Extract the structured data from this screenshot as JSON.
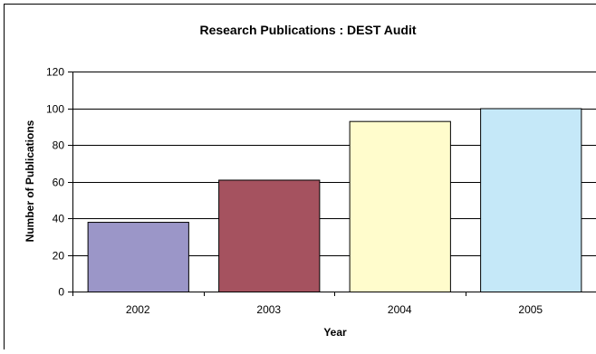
{
  "chart_data": {
    "type": "bar",
    "title": "Research Publications : DEST Audit",
    "xlabel": "Year",
    "ylabel": "Number of Publications",
    "categories": [
      "2002",
      "2003",
      "2004",
      "2005"
    ],
    "values": [
      38,
      61,
      93,
      100
    ],
    "colors": [
      "#9b96c8",
      "#a5525f",
      "#fffccc",
      "#c5e8f8"
    ],
    "ylim": [
      0,
      120
    ],
    "yticks": [
      "0",
      "20",
      "40",
      "60",
      "80",
      "100",
      "120"
    ],
    "grid": true,
    "legend": "none"
  }
}
